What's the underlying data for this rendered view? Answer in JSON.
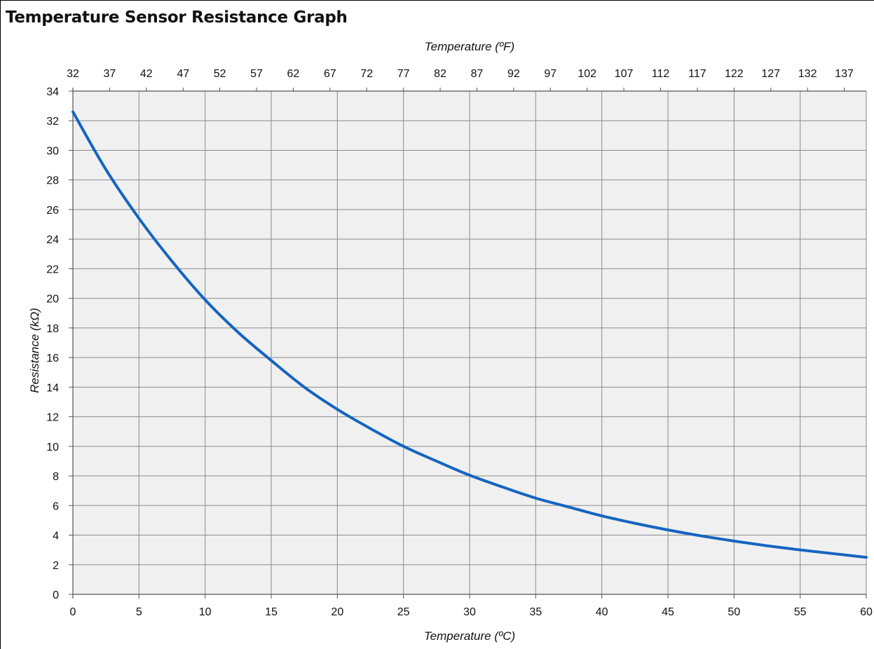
{
  "header": {
    "title": "Temperature Sensor Resistance Graph"
  },
  "chart_data": {
    "type": "line",
    "top_axis_label": "Temperature (ºF)",
    "xlabel": "Temperature (ºC)",
    "ylabel": "Resistance (kΩ)",
    "xlim": [
      0,
      60
    ],
    "ylim": [
      0,
      34
    ],
    "x_ticks": [
      0,
      5,
      10,
      15,
      20,
      25,
      30,
      35,
      40,
      45,
      50,
      55,
      60
    ],
    "y_ticks": [
      0,
      2,
      4,
      6,
      8,
      10,
      12,
      14,
      16,
      18,
      20,
      22,
      24,
      26,
      28,
      30,
      32,
      34
    ],
    "top_ticks_f": [
      "32",
      "37",
      "42",
      "47",
      "52",
      "57",
      "62",
      "67",
      "72",
      "77",
      "82",
      "87",
      "92",
      "97",
      "102",
      "107",
      "112",
      "117",
      "122",
      "127",
      "132",
      "137"
    ],
    "grid": true,
    "plot_background": "#f0f0f0",
    "grid_color": "#8a8a8a",
    "line_color": "#1565c0",
    "series": [
      {
        "x": [
          0,
          2.5,
          5,
          7.5,
          10,
          12.5,
          15,
          17.5,
          20,
          22.5,
          25,
          27.5,
          30,
          32.5,
          35,
          37.5,
          40,
          42.5,
          45,
          47.5,
          50,
          52.5,
          55,
          57.5,
          60
        ],
        "values": [
          32.6,
          28.7,
          25.4,
          22.5,
          19.9,
          17.7,
          15.8,
          14.0,
          12.5,
          11.2,
          10.0,
          9.0,
          8.05,
          7.25,
          6.5,
          5.9,
          5.3,
          4.8,
          4.35,
          3.95,
          3.6,
          3.28,
          3.0,
          2.75,
          2.5
        ]
      }
    ]
  }
}
